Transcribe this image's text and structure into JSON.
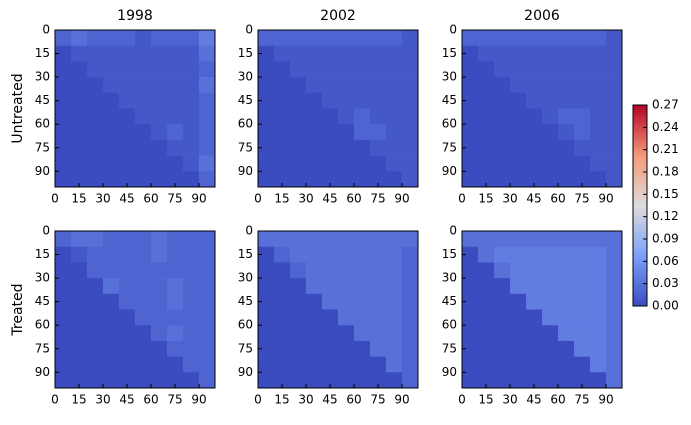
{
  "chart_data": [
    {
      "type": "heatmap",
      "title": "1998",
      "ylabel": "Untreated",
      "xlim": [
        0,
        100
      ],
      "ylim": [
        100,
        0
      ],
      "xticks": [
        0,
        15,
        30,
        45,
        60,
        75,
        90
      ],
      "yticks": [
        0,
        15,
        30,
        45,
        60,
        75,
        90
      ],
      "z": [
        [
          0.02,
          0.03,
          0.02,
          0.02,
          0.02,
          0.01,
          0.02,
          0.02,
          0.02,
          0.04
        ],
        [
          0,
          0.01,
          0.01,
          0.01,
          0.01,
          0.01,
          0.01,
          0.01,
          0.01,
          0.03
        ],
        [
          0,
          0,
          0.01,
          0.01,
          0.01,
          0.01,
          0.01,
          0.01,
          0.01,
          0.02
        ],
        [
          0,
          0,
          0,
          0.01,
          0.01,
          0.01,
          0.01,
          0.01,
          0.01,
          0.03
        ],
        [
          0,
          0,
          0,
          0,
          0.01,
          0.01,
          0.01,
          0.01,
          0.01,
          0.02
        ],
        [
          0,
          0,
          0,
          0,
          0,
          0.01,
          0.01,
          0.01,
          0.01,
          0.02
        ],
        [
          0,
          0,
          0,
          0,
          0,
          0,
          0.01,
          0.02,
          0.01,
          0.02
        ],
        [
          0,
          0,
          0,
          0,
          0,
          0,
          0,
          0.01,
          0.01,
          0.02
        ],
        [
          0,
          0,
          0,
          0,
          0,
          0,
          0,
          0,
          0.01,
          0.03
        ],
        [
          0,
          0,
          0,
          0,
          0,
          0,
          0,
          0,
          0,
          0.02
        ]
      ]
    },
    {
      "type": "heatmap",
      "title": "2002",
      "xlim": [
        0,
        100
      ],
      "ylim": [
        100,
        0
      ],
      "xticks": [
        0,
        15,
        30,
        45,
        60,
        75,
        90
      ],
      "yticks": [
        0,
        15,
        30,
        45,
        60,
        75,
        90
      ],
      "z": [
        [
          0.02,
          0.02,
          0.02,
          0.02,
          0.02,
          0.02,
          0.02,
          0.02,
          0.02,
          0.01
        ],
        [
          0,
          0.01,
          0.01,
          0.01,
          0.01,
          0.01,
          0.01,
          0.01,
          0.01,
          0.01
        ],
        [
          0,
          0,
          0.01,
          0.01,
          0.01,
          0.01,
          0.01,
          0.01,
          0.01,
          0.01
        ],
        [
          0,
          0,
          0,
          0.01,
          0.01,
          0.01,
          0.01,
          0.01,
          0.01,
          0.01
        ],
        [
          0,
          0,
          0,
          0,
          0.01,
          0.01,
          0.01,
          0.01,
          0.01,
          0.01
        ],
        [
          0,
          0,
          0,
          0,
          0,
          0.01,
          0.02,
          0.01,
          0.01,
          0.01
        ],
        [
          0,
          0,
          0,
          0,
          0,
          0,
          0.02,
          0.02,
          0.01,
          0.01
        ],
        [
          0,
          0,
          0,
          0,
          0,
          0,
          0,
          0.01,
          0.01,
          0.01
        ],
        [
          0,
          0,
          0,
          0,
          0,
          0,
          0,
          0,
          0.01,
          0.01
        ],
        [
          0,
          0,
          0,
          0,
          0,
          0,
          0,
          0,
          0,
          0.01
        ]
      ]
    },
    {
      "type": "heatmap",
      "title": "2006",
      "xlim": [
        0,
        100
      ],
      "ylim": [
        100,
        0
      ],
      "xticks": [
        0,
        15,
        30,
        45,
        60,
        75,
        90
      ],
      "yticks": [
        0,
        15,
        30,
        45,
        60,
        75,
        90
      ],
      "z": [
        [
          0.02,
          0.02,
          0.02,
          0.02,
          0.02,
          0.02,
          0.02,
          0.02,
          0.02,
          0.01
        ],
        [
          0,
          0.01,
          0.01,
          0.01,
          0.01,
          0.01,
          0.01,
          0.01,
          0.01,
          0.01
        ],
        [
          0,
          0,
          0.01,
          0.01,
          0.01,
          0.01,
          0.01,
          0.01,
          0.01,
          0.01
        ],
        [
          0,
          0,
          0,
          0.01,
          0.01,
          0.01,
          0.01,
          0.01,
          0.01,
          0.01
        ],
        [
          0,
          0,
          0,
          0,
          0.01,
          0.01,
          0.01,
          0.01,
          0.01,
          0.01
        ],
        [
          0,
          0,
          0,
          0,
          0,
          0.01,
          0.02,
          0.02,
          0.01,
          0.01
        ],
        [
          0,
          0,
          0,
          0,
          0,
          0,
          0.01,
          0.02,
          0.01,
          0.01
        ],
        [
          0,
          0,
          0,
          0,
          0,
          0,
          0,
          0.01,
          0.01,
          0.01
        ],
        [
          0,
          0,
          0,
          0,
          0,
          0,
          0,
          0,
          0.01,
          0.01
        ],
        [
          0,
          0,
          0,
          0,
          0,
          0,
          0,
          0,
          0,
          0.01
        ]
      ]
    },
    {
      "type": "heatmap",
      "ylabel": "Treated",
      "xlim": [
        0,
        100
      ],
      "ylim": [
        100,
        0
      ],
      "xticks": [
        0,
        15,
        30,
        45,
        60,
        75,
        90
      ],
      "yticks": [
        0,
        15,
        30,
        45,
        60,
        75,
        90
      ],
      "z": [
        [
          0.02,
          0.03,
          0.03,
          0.02,
          0.02,
          0.02,
          0.03,
          0.02,
          0.02,
          0.02
        ],
        [
          0,
          0.01,
          0.02,
          0.02,
          0.02,
          0.02,
          0.03,
          0.02,
          0.02,
          0.02
        ],
        [
          0,
          0,
          0.02,
          0.02,
          0.02,
          0.02,
          0.02,
          0.02,
          0.02,
          0.02
        ],
        [
          0,
          0,
          0,
          0.03,
          0.02,
          0.02,
          0.02,
          0.03,
          0.02,
          0.02
        ],
        [
          0,
          0,
          0,
          0,
          0.02,
          0.02,
          0.02,
          0.03,
          0.02,
          0.02
        ],
        [
          0,
          0,
          0,
          0,
          0,
          0.02,
          0.02,
          0.02,
          0.02,
          0.02
        ],
        [
          0,
          0,
          0,
          0,
          0,
          0,
          0.02,
          0.03,
          0.02,
          0.02
        ],
        [
          0,
          0,
          0,
          0,
          0,
          0,
          0,
          0.02,
          0.02,
          0.02
        ],
        [
          0,
          0,
          0,
          0,
          0,
          0,
          0,
          0,
          0.02,
          0.02
        ],
        [
          0,
          0,
          0,
          0,
          0,
          0,
          0,
          0,
          0,
          0.02
        ]
      ]
    },
    {
      "type": "heatmap",
      "xlim": [
        0,
        100
      ],
      "ylim": [
        100,
        0
      ],
      "xticks": [
        0,
        15,
        30,
        45,
        60,
        75,
        90
      ],
      "yticks": [
        0,
        15,
        30,
        45,
        60,
        75,
        90
      ],
      "z": [
        [
          0.03,
          0.03,
          0.03,
          0.03,
          0.03,
          0.03,
          0.03,
          0.03,
          0.03,
          0.03
        ],
        [
          0,
          0.02,
          0.03,
          0.03,
          0.03,
          0.03,
          0.03,
          0.03,
          0.03,
          0.02
        ],
        [
          0,
          0,
          0.02,
          0.03,
          0.03,
          0.03,
          0.03,
          0.03,
          0.03,
          0.02
        ],
        [
          0,
          0,
          0,
          0.03,
          0.03,
          0.03,
          0.03,
          0.03,
          0.03,
          0.02
        ],
        [
          0,
          0,
          0,
          0,
          0.03,
          0.03,
          0.03,
          0.03,
          0.03,
          0.02
        ],
        [
          0,
          0,
          0,
          0,
          0,
          0.03,
          0.03,
          0.03,
          0.03,
          0.02
        ],
        [
          0,
          0,
          0,
          0,
          0,
          0,
          0.03,
          0.03,
          0.03,
          0.02
        ],
        [
          0,
          0,
          0,
          0,
          0,
          0,
          0,
          0.03,
          0.03,
          0.02
        ],
        [
          0,
          0,
          0,
          0,
          0,
          0,
          0,
          0,
          0.03,
          0.02
        ],
        [
          0,
          0,
          0,
          0,
          0,
          0,
          0,
          0,
          0,
          0.02
        ]
      ]
    },
    {
      "type": "heatmap",
      "xlim": [
        0,
        100
      ],
      "ylim": [
        100,
        0
      ],
      "xticks": [
        0,
        15,
        30,
        45,
        60,
        75,
        90
      ],
      "yticks": [
        0,
        15,
        30,
        45,
        60,
        75,
        90
      ],
      "z": [
        [
          0.03,
          0.03,
          0.03,
          0.03,
          0.03,
          0.03,
          0.03,
          0.03,
          0.03,
          0.03
        ],
        [
          0,
          0.03,
          0.04,
          0.04,
          0.04,
          0.04,
          0.04,
          0.04,
          0.04,
          0.03
        ],
        [
          0,
          0,
          0.03,
          0.04,
          0.04,
          0.04,
          0.04,
          0.04,
          0.04,
          0.03
        ],
        [
          0,
          0,
          0,
          0.04,
          0.04,
          0.04,
          0.04,
          0.04,
          0.04,
          0.03
        ],
        [
          0,
          0,
          0,
          0,
          0.04,
          0.04,
          0.04,
          0.04,
          0.04,
          0.03
        ],
        [
          0,
          0,
          0,
          0,
          0,
          0.04,
          0.04,
          0.04,
          0.04,
          0.03
        ],
        [
          0,
          0,
          0,
          0,
          0,
          0,
          0.04,
          0.04,
          0.04,
          0.03
        ],
        [
          0,
          0,
          0,
          0,
          0,
          0,
          0,
          0.04,
          0.04,
          0.03
        ],
        [
          0,
          0,
          0,
          0,
          0,
          0,
          0,
          0,
          0.04,
          0.03
        ],
        [
          0,
          0,
          0,
          0,
          0,
          0,
          0,
          0,
          0,
          0.03
        ]
      ]
    }
  ],
  "colorbar": {
    "zlim": [
      0,
      0.27
    ],
    "colormap": [
      "#3b4cc0",
      "#7b9ff9",
      "#dddcdc",
      "#f49a7b",
      "#b40426"
    ],
    "ticks": [
      {
        "value": 0,
        "label": "0.00"
      },
      {
        "value": 0.03,
        "label": "0.03"
      },
      {
        "value": 0.06,
        "label": "0.06"
      },
      {
        "value": 0.09,
        "label": "0.09"
      },
      {
        "value": 0.12,
        "label": "0.12"
      },
      {
        "value": 0.15,
        "label": "0.15"
      },
      {
        "value": 0.18,
        "label": "0.18"
      },
      {
        "value": 0.21,
        "label": "0.21"
      },
      {
        "value": 0.24,
        "label": "0.24"
      },
      {
        "value": 0.27,
        "label": "0.27"
      }
    ]
  }
}
